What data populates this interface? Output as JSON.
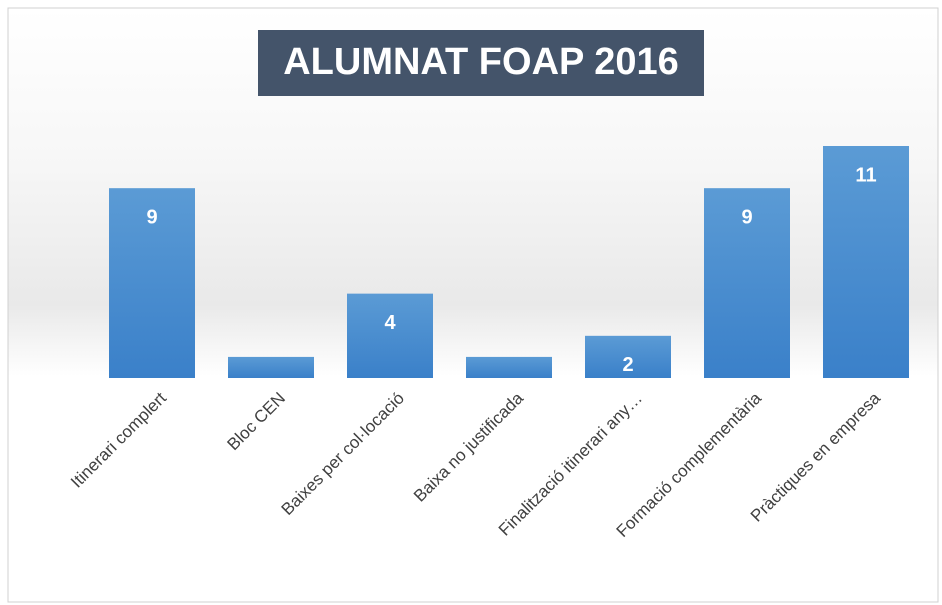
{
  "chart_data": {
    "type": "bar",
    "title": "ALUMNAT FOAP 2016",
    "categories": [
      "Itinerari complert",
      "Bloc CEN",
      "Baixes per col·locació",
      "Baixa no justificada",
      "Finalització itinerari any…",
      "Formació complementària",
      "Pràctiques en empresa"
    ],
    "values": [
      9,
      1,
      4,
      1,
      2,
      9,
      11
    ],
    "color": "#4a90d9"
  }
}
